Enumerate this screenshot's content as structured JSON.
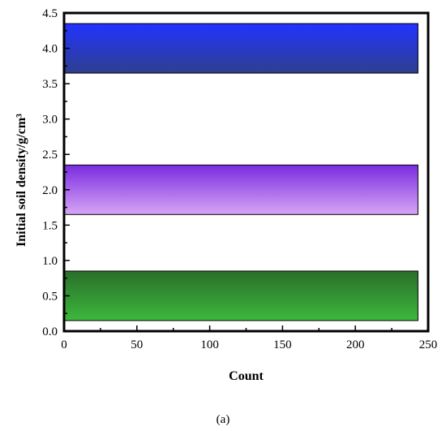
{
  "chart_data": {
    "type": "bar",
    "orientation": "horizontal",
    "xlabel": "Count",
    "ylabel": "Initial soil density/g/cm³",
    "xlim": [
      0,
      250
    ],
    "ylim": [
      0.0,
      4.5
    ],
    "x_ticks": [
      "0",
      "50",
      "100",
      "150",
      "200",
      "250"
    ],
    "y_ticks": [
      "0.0",
      "0.5",
      "1.0",
      "1.5",
      "2.0",
      "2.5",
      "3.0",
      "3.5",
      "4.0",
      "4.5"
    ],
    "grid": false,
    "bars": [
      {
        "y": 0.5,
        "y_low": 0.15,
        "y_high": 0.85,
        "value": 243,
        "color_top": "#2a6e2a",
        "color_bottom": "#3cb83c"
      },
      {
        "y": 2.0,
        "y_low": 1.65,
        "y_high": 2.35,
        "value": 243,
        "color_top": "#7a2ce0",
        "color_bottom": "#d6a6f5"
      },
      {
        "y": 4.0,
        "y_low": 3.65,
        "y_high": 4.35,
        "value": 243,
        "color_top": "#2233ff",
        "color_bottom": "#2e3f8f"
      }
    ]
  },
  "caption": "(a)"
}
